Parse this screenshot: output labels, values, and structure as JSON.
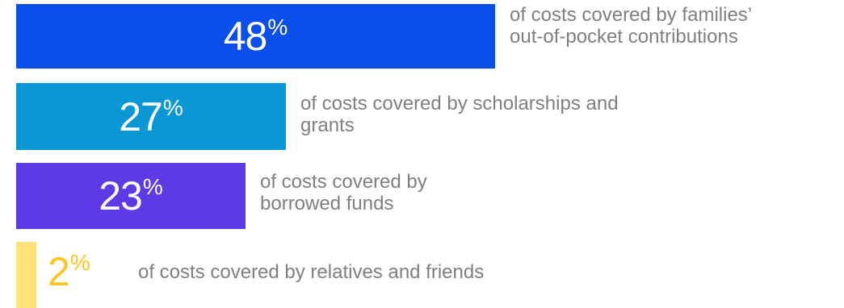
{
  "chart_data": {
    "type": "bar",
    "orientation": "horizontal",
    "categories": [
      "of costs covered by families’ out-of-pocket contributions",
      "of costs covered by scholarships and grants",
      "of costs covered by borrowed funds",
      "of costs covered by relatives and friends"
    ],
    "values": [
      48,
      27,
      23,
      2
    ],
    "value_labels": [
      "48",
      "27",
      "23",
      "2"
    ],
    "unit": "%",
    "colors": [
      "#0a4fea",
      "#0a97d3",
      "#5a3be6",
      "#fde27b"
    ],
    "label_colors": [
      "#ffffff",
      "#ffffff",
      "#ffffff",
      "#fcc521"
    ],
    "description_color": "#7f7f7f",
    "descriptions": [
      [
        "of costs covered by families’",
        "out-of-pocket contributions"
      ],
      [
        "of costs covered by scholarships and",
        "grants"
      ],
      [
        "of costs covered by",
        "borrowed funds"
      ],
      [
        "of costs covered by relatives and friends"
      ]
    ]
  }
}
